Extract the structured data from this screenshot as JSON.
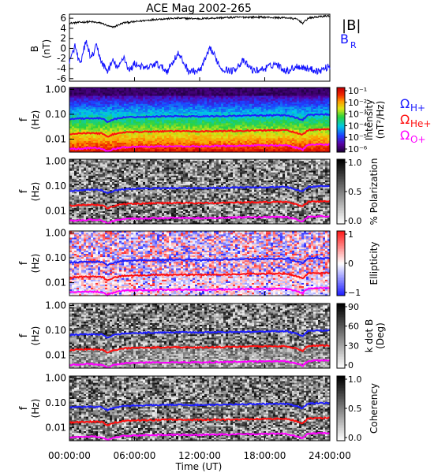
{
  "title": "ACE Mag 2002-265",
  "xaxis": {
    "label": "Time (UT)",
    "ticks": [
      "00:00:00",
      "06:00:00",
      "12:00:00",
      "18:00:00",
      "24:00:00"
    ],
    "range_hours": [
      0,
      24
    ]
  },
  "freq_ticks": [
    "1.00",
    "0.10",
    "0.01"
  ],
  "freq_range_hz": [
    0.003,
    1.2
  ],
  "freq_axis_label": {
    "line1": "f",
    "line2": "(Hz)"
  },
  "legend": {
    "B_total": "|B|",
    "B_R_main": "B",
    "B_R_sub": "R",
    "omega_H_sub": "H+",
    "omega_He_sub": "He+",
    "omega_O_sub": "O+",
    "omega_symbol": "Ω"
  },
  "colors": {
    "B_total": "#000000",
    "B_R": "#1010ff",
    "omega_H": "#1f1fff",
    "omega_He": "#ff1010",
    "omega_O": "#ff00ff"
  },
  "chart_data": [
    {
      "type": "line",
      "panel": "magnetic-field",
      "ylabel_main": "B",
      "ylabel_unit": "(nT)",
      "ylim": [
        -6.5,
        6.8
      ],
      "yticks": [
        "6",
        "4",
        "2",
        "0",
        "-2",
        "-4",
        "-6"
      ],
      "series": [
        {
          "name": "|B|",
          "x": [
            0,
            1,
            2,
            3,
            3.5,
            4,
            5,
            6,
            8,
            10,
            12,
            14,
            16,
            18,
            19,
            20,
            21,
            21.5,
            22,
            23,
            24
          ],
          "values": [
            5.0,
            5.2,
            5.3,
            5.0,
            4.5,
            4.2,
            5.1,
            5.3,
            5.8,
            6.0,
            5.9,
            6.1,
            6.2,
            6.2,
            6.1,
            6.1,
            5.8,
            5.0,
            6.0,
            6.3,
            6.5
          ]
        },
        {
          "name": "B_R",
          "x": [
            0,
            0.5,
            1,
            1.5,
            2,
            2.5,
            3,
            3.5,
            4,
            4.5,
            5,
            5.5,
            6,
            7,
            8,
            9,
            10,
            11,
            12,
            13,
            14,
            15,
            16,
            17,
            18,
            19,
            20,
            21,
            22,
            23,
            24
          ],
          "values": [
            -3.0,
            0.5,
            -3.5,
            1.5,
            -2.0,
            0.5,
            -3.0,
            -4.5,
            -2.5,
            -4.0,
            -1.5,
            -4.5,
            -3.0,
            -4.0,
            -3.0,
            -4.5,
            -1.0,
            -4.5,
            -4.5,
            0.0,
            -4.0,
            -4.5,
            -2.5,
            -4.5,
            -4.0,
            -3.0,
            -4.5,
            -3.5,
            -4.0,
            -4.5,
            -3.5
          ]
        }
      ]
    },
    {
      "type": "heatmap",
      "panel": "intensity",
      "colorbar_label": "Intensity",
      "colorbar_unit": "(nT²/Hz)",
      "colorbar_ticks": [
        "10⁻¹",
        "10⁻²",
        "10⁻³",
        "10⁻⁴",
        "10⁻⁵",
        "10⁻⁶"
      ],
      "colorbar_scale": "log"
    },
    {
      "type": "heatmap",
      "panel": "polarization",
      "colorbar_label": "% Polarization",
      "colorbar_ticks": [
        "1.0",
        "0.5",
        "0.0"
      ]
    },
    {
      "type": "heatmap",
      "panel": "ellipticity",
      "colorbar_label": "Ellipticity",
      "colorbar_ticks": [
        "1",
        "0",
        "−1"
      ]
    },
    {
      "type": "heatmap",
      "panel": "kdotb",
      "colorbar_label": "k dot B",
      "colorbar_unit": "(Deg)",
      "colorbar_ticks": [
        "90",
        "60",
        "30",
        "0"
      ]
    },
    {
      "type": "heatmap",
      "panel": "coherency",
      "colorbar_label": "Coherency",
      "colorbar_ticks": [
        "1.0",
        "0.5",
        "0.0"
      ]
    }
  ],
  "gyrofrequency_lines": {
    "x_hours": [
      0,
      1,
      2,
      3,
      3.5,
      4,
      5,
      6,
      8,
      10,
      12,
      14,
      16,
      18,
      20,
      21.5,
      22,
      23,
      24
    ],
    "H_plus_hz": [
      0.065,
      0.068,
      0.07,
      0.068,
      0.05,
      0.062,
      0.075,
      0.078,
      0.082,
      0.084,
      0.082,
      0.085,
      0.088,
      0.09,
      0.092,
      0.06,
      0.093,
      0.097,
      0.1
    ],
    "He_plus_hz": [
      0.016,
      0.017,
      0.0175,
      0.017,
      0.0125,
      0.0155,
      0.0188,
      0.0195,
      0.0205,
      0.021,
      0.0205,
      0.0212,
      0.022,
      0.0225,
      0.023,
      0.015,
      0.0232,
      0.0242,
      0.025
    ],
    "O_plus_hz": [
      0.004,
      0.0042,
      0.0044,
      0.0042,
      0.0031,
      0.0039,
      0.0047,
      0.0049,
      0.0051,
      0.0052,
      0.0051,
      0.0053,
      0.0055,
      0.0056,
      0.0057,
      0.0038,
      0.0058,
      0.006,
      0.0062
    ]
  }
}
